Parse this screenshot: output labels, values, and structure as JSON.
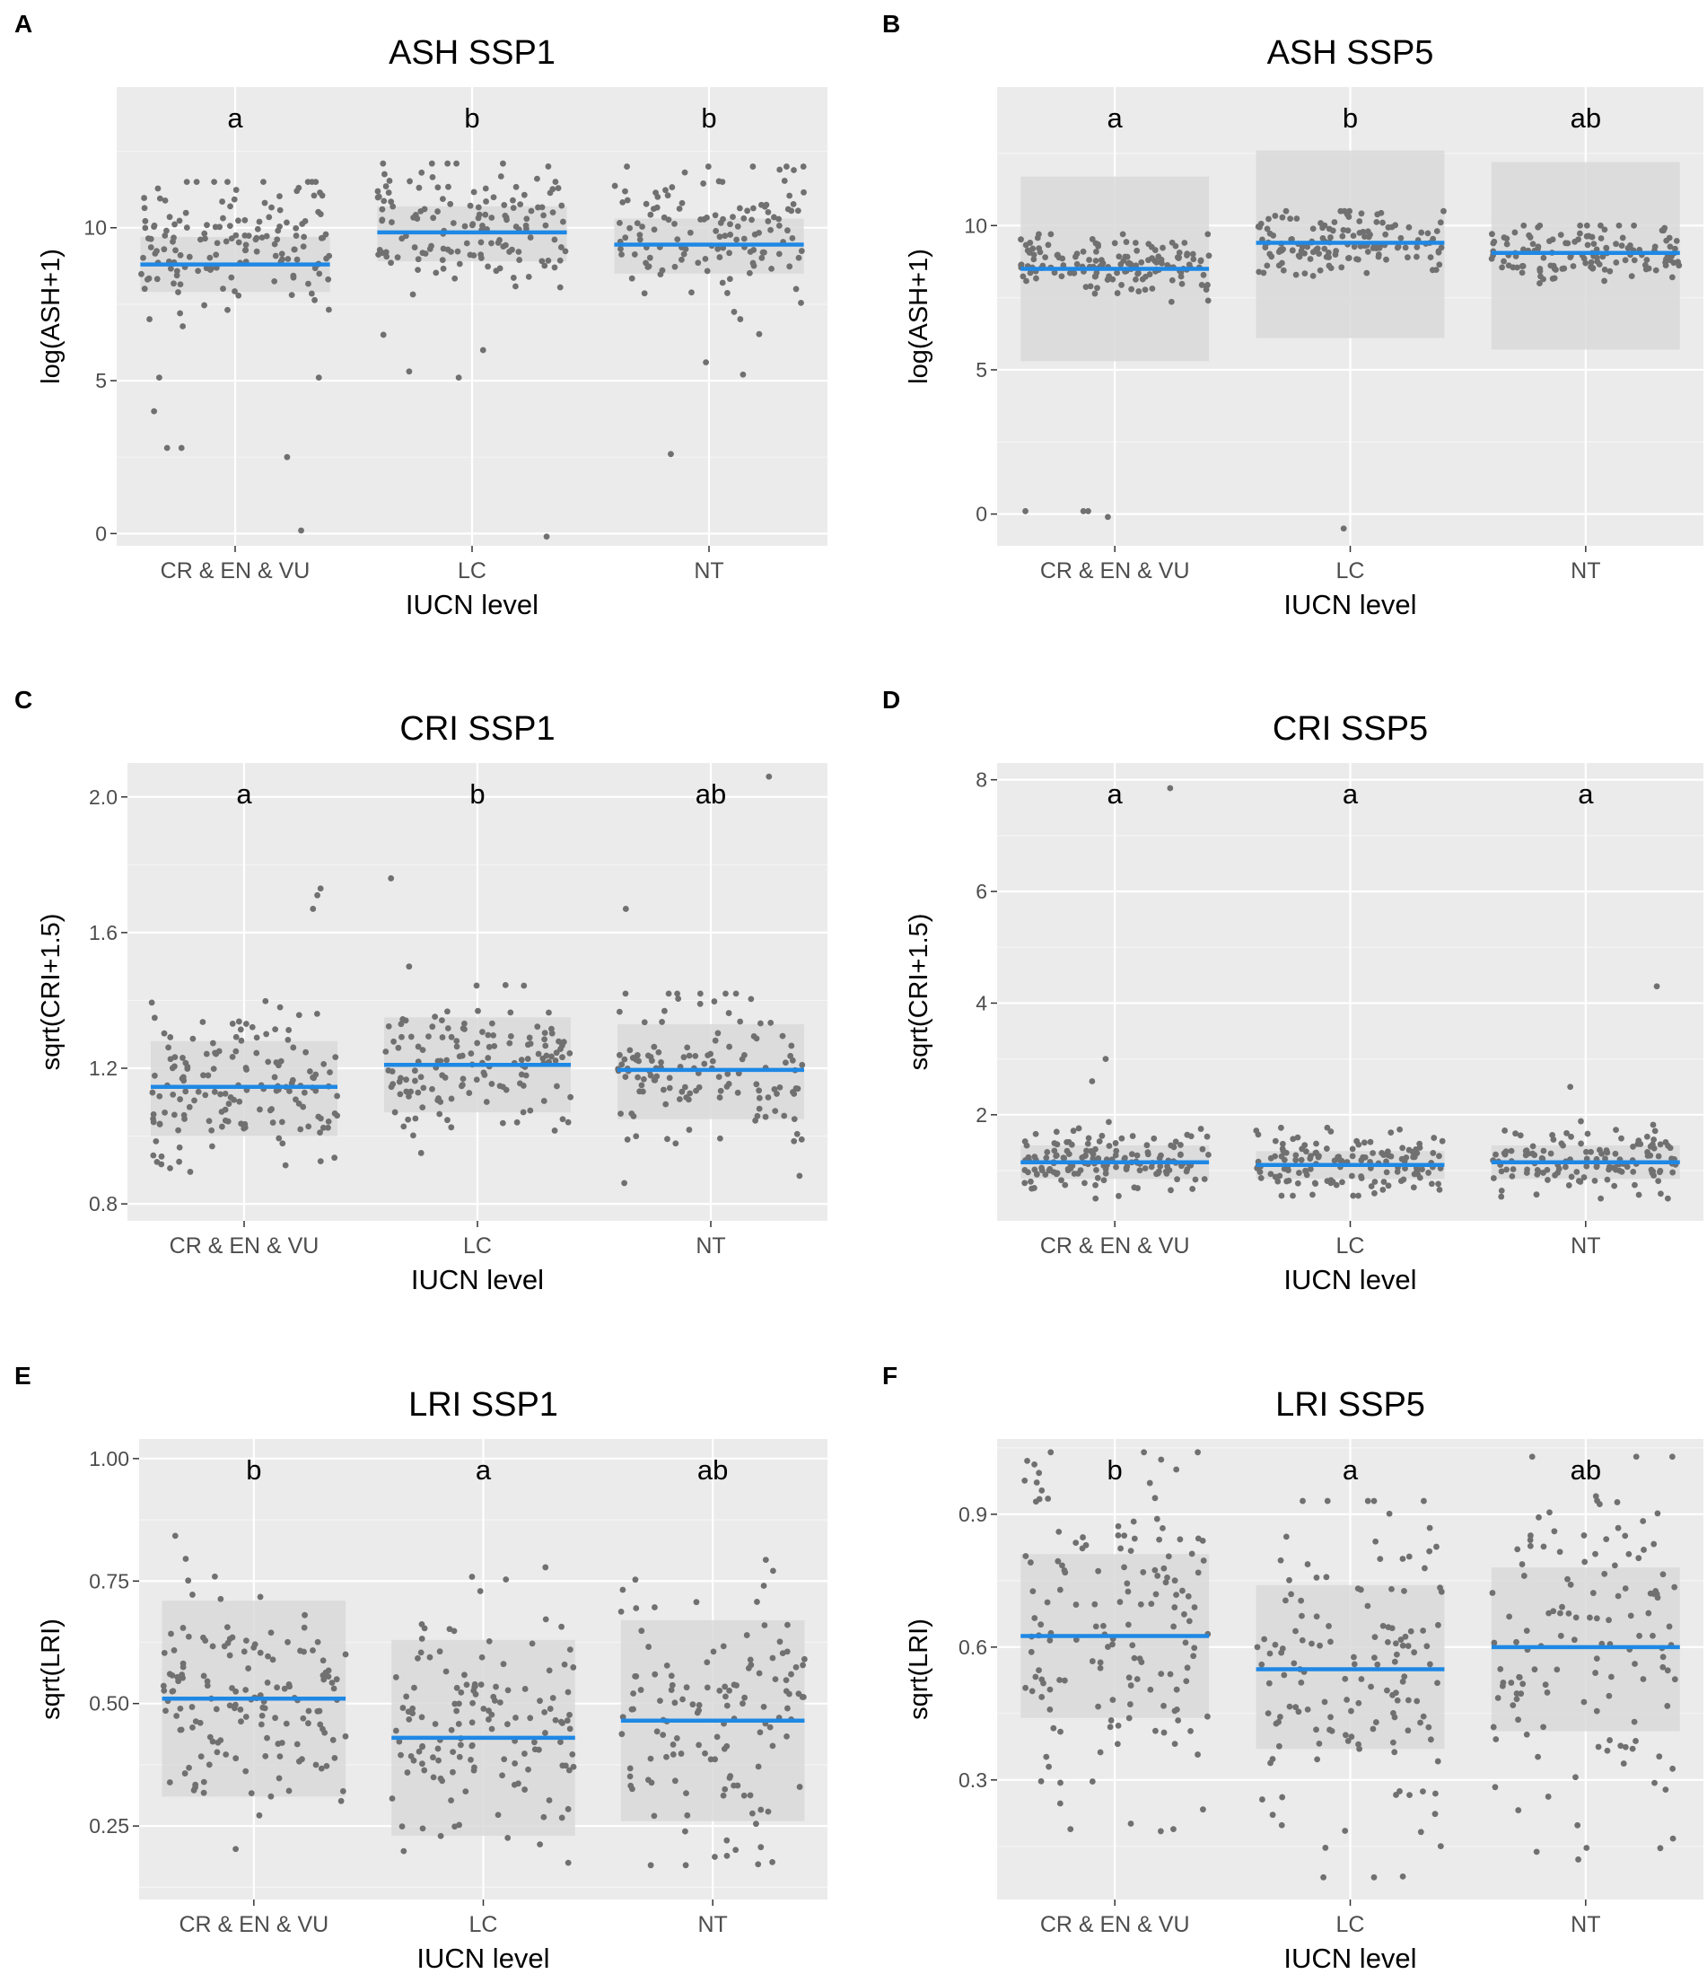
{
  "figure": {
    "axis_font_color": "#4d4d4d",
    "panel_bg": "#ebebeb",
    "band_color": "#d9d9d9",
    "point_color": "#707070",
    "mean_color": "#1e88e5"
  },
  "chart_data": [
    {
      "panel": "A",
      "type": "scatter",
      "title": "ASH SSP1",
      "xlabel": "IUCN level",
      "ylabel": "log(ASH+1)",
      "categories": [
        "CR & EN & VU",
        "LC",
        "NT"
      ],
      "ylim": [
        -0.4,
        14.6
      ],
      "yticks": [
        0,
        5,
        10
      ],
      "ytick_labels": [
        "0",
        "5",
        "10"
      ],
      "letters": [
        "a",
        "b",
        "b"
      ],
      "means": [
        8.8,
        9.85,
        9.45
      ],
      "bands": [
        [
          7.9,
          9.7
        ],
        [
          8.9,
          10.7
        ],
        [
          8.5,
          10.3
        ]
      ],
      "groups": [
        {
          "n": 150,
          "center": 9.3,
          "spread": 1.15,
          "low": 5.0,
          "high": 11.5,
          "outliers": [
            0.1,
            2.5,
            2.8,
            2.8,
            4.0,
            5.1,
            5.1
          ]
        },
        {
          "n": 140,
          "center": 10.2,
          "spread": 1.2,
          "low": 6.5,
          "high": 12.1,
          "outliers": [
            -0.1,
            5.1,
            5.3,
            6.0
          ]
        },
        {
          "n": 130,
          "center": 9.8,
          "spread": 1.2,
          "low": 6.0,
          "high": 12.0,
          "outliers": [
            2.6,
            5.2,
            5.6
          ]
        }
      ]
    },
    {
      "panel": "B",
      "type": "scatter",
      "title": "ASH SSP5",
      "xlabel": "IUCN level",
      "ylabel": "log(ASH+1)",
      "categories": [
        "CR & EN & VU",
        "LC",
        "NT"
      ],
      "ylim": [
        -1.1,
        14.8
      ],
      "yticks": [
        0,
        5,
        10
      ],
      "ytick_labels": [
        "0",
        "5",
        "10"
      ],
      "letters": [
        "a",
        "b",
        "ab"
      ],
      "means": [
        8.5,
        9.4,
        9.05
      ],
      "bands": [
        [
          5.3,
          11.7
        ],
        [
          6.1,
          12.6
        ],
        [
          5.7,
          12.2
        ]
      ],
      "groups": [
        {
          "n": 150,
          "center": 8.7,
          "spread": 0.55,
          "low": 6.2,
          "high": 9.7,
          "outliers": [
            0.1,
            0.1,
            0.1,
            -0.1
          ]
        },
        {
          "n": 140,
          "center": 9.5,
          "spread": 0.55,
          "low": 7.6,
          "high": 10.5,
          "outliers": [
            -0.5
          ]
        },
        {
          "n": 130,
          "center": 9.1,
          "spread": 0.55,
          "low": 6.7,
          "high": 10.0,
          "outliers": []
        }
      ]
    },
    {
      "panel": "C",
      "type": "scatter",
      "title": "CRI SSP1",
      "xlabel": "IUCN level",
      "ylabel": "sqrt(CRI+1.5)",
      "categories": [
        "CR & EN & VU",
        "LC",
        "NT"
      ],
      "ylim": [
        0.75,
        2.1
      ],
      "yticks": [
        0.8,
        1.2,
        1.6,
        2.0
      ],
      "ytick_labels": [
        "0.8",
        "1.2",
        "1.6",
        "2.0"
      ],
      "letters": [
        "a",
        "b",
        "ab"
      ],
      "means": [
        1.145,
        1.21,
        1.195
      ],
      "bands": [
        [
          1.0,
          1.28
        ],
        [
          1.07,
          1.35
        ],
        [
          1.05,
          1.33
        ]
      ],
      "groups": [
        {
          "n": 150,
          "center": 1.14,
          "spread": 0.12,
          "low": 0.8,
          "high": 1.45,
          "outliers": [
            1.67,
            1.71,
            1.73
          ]
        },
        {
          "n": 140,
          "center": 1.21,
          "spread": 0.1,
          "low": 0.95,
          "high": 1.5,
          "outliers": [
            1.76
          ]
        },
        {
          "n": 130,
          "center": 1.19,
          "spread": 0.11,
          "low": 0.83,
          "high": 1.42,
          "outliers": [
            1.67,
            2.06
          ]
        }
      ]
    },
    {
      "panel": "D",
      "type": "scatter",
      "title": "CRI SSP5",
      "xlabel": "IUCN level",
      "ylabel": "sqrt(CRI+1.5)",
      "categories": [
        "CR & EN & VU",
        "LC",
        "NT"
      ],
      "ylim": [
        0.1,
        8.3
      ],
      "yticks": [
        2,
        4,
        6,
        8
      ],
      "ytick_labels": [
        "2",
        "4",
        "6",
        "8"
      ],
      "letters": [
        "a",
        "a",
        "a"
      ],
      "means": [
        1.15,
        1.1,
        1.15
      ],
      "bands": [
        [
          0.85,
          1.45
        ],
        [
          0.85,
          1.35
        ],
        [
          0.85,
          1.45
        ]
      ],
      "groups": [
        {
          "n": 150,
          "center": 1.15,
          "spread": 0.3,
          "low": 0.5,
          "high": 2.2,
          "outliers": [
            2.6,
            3.0,
            7.85
          ]
        },
        {
          "n": 140,
          "center": 1.1,
          "spread": 0.28,
          "low": 0.55,
          "high": 2.1,
          "outliers": []
        },
        {
          "n": 130,
          "center": 1.15,
          "spread": 0.3,
          "low": 0.5,
          "high": 2.4,
          "outliers": [
            2.5,
            4.3
          ]
        }
      ]
    },
    {
      "panel": "E",
      "type": "scatter",
      "title": "LRI SSP1",
      "xlabel": "IUCN level",
      "ylabel": "sqrt(LRI)",
      "categories": [
        "CR & EN & VU",
        "LC",
        "NT"
      ],
      "ylim": [
        0.1,
        1.04
      ],
      "yticks": [
        0.25,
        0.5,
        0.75,
        1.0
      ],
      "ytick_labels": [
        "0.25",
        "0.50",
        "0.75",
        "1.00"
      ],
      "letters": [
        "b",
        "a",
        "ab"
      ],
      "means": [
        0.51,
        0.43,
        0.465
      ],
      "bands": [
        [
          0.31,
          0.71
        ],
        [
          0.23,
          0.63
        ],
        [
          0.26,
          0.67
        ]
      ],
      "groups": [
        {
          "n": 150,
          "center": 0.51,
          "spread": 0.13,
          "low": 0.14,
          "high": 0.88,
          "outliers": []
        },
        {
          "n": 140,
          "center": 0.43,
          "spread": 0.12,
          "low": 0.15,
          "high": 0.85,
          "outliers": []
        },
        {
          "n": 130,
          "center": 0.46,
          "spread": 0.13,
          "low": 0.17,
          "high": 0.83,
          "outliers": []
        }
      ]
    },
    {
      "panel": "F",
      "type": "scatter",
      "title": "LRI SSP5",
      "xlabel": "IUCN level",
      "ylabel": "sqrt(LRI)",
      "categories": [
        "CR & EN & VU",
        "LC",
        "NT"
      ],
      "ylim": [
        0.03,
        1.07
      ],
      "yticks": [
        0.3,
        0.6,
        0.9
      ],
      "ytick_labels": [
        "0.3",
        "0.6",
        "0.9"
      ],
      "letters": [
        "b",
        "a",
        "ab"
      ],
      "means": [
        0.625,
        0.55,
        0.6
      ],
      "bands": [
        [
          0.44,
          0.81
        ],
        [
          0.37,
          0.74
        ],
        [
          0.41,
          0.78
        ]
      ],
      "groups": [
        {
          "n": 150,
          "center": 0.63,
          "spread": 0.2,
          "low": 0.07,
          "high": 1.04,
          "outliers": []
        },
        {
          "n": 140,
          "center": 0.55,
          "spread": 0.2,
          "low": 0.08,
          "high": 0.93,
          "outliers": []
        },
        {
          "n": 130,
          "center": 0.6,
          "spread": 0.2,
          "low": 0.06,
          "high": 1.03,
          "outliers": []
        }
      ]
    }
  ]
}
